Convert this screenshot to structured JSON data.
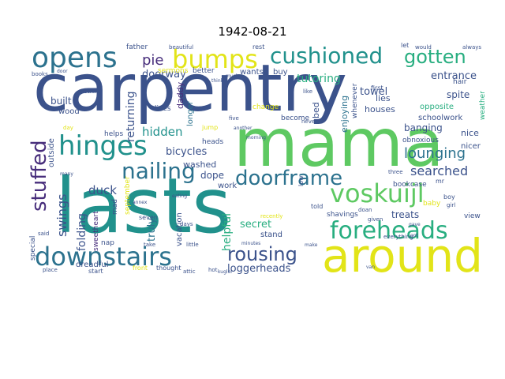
{
  "title": "1942-08-21",
  "palette": {
    "navy": "#3b528b",
    "dark": "#472d7b",
    "teal": "#21918c",
    "blue": "#2c728e",
    "green": "#5ec962",
    "yellow": "#e2e418",
    "lime": "#addc30",
    "sea": "#28ae80",
    "grey": "#414487"
  },
  "words": [
    "carpentry",
    "lasts",
    "mama",
    "around",
    "downstairs",
    "voskuijl",
    "foreheads",
    "opens",
    "bumps",
    "cushioned",
    "gotten",
    "hinges",
    "stuffed",
    "nailing",
    "doorframe",
    "rousing",
    "lounging",
    "searched",
    "swings",
    "hidden",
    "duck",
    "pie",
    "bicycles",
    "washed",
    "loggerheads",
    "dope",
    "secret",
    "treats",
    "banging",
    "entrance",
    "doorway",
    "returning",
    "tutoring",
    "towel",
    "built",
    "truly",
    "helpful",
    "folding",
    "work",
    "stand",
    "bookcase",
    "schoolwork",
    "opposite",
    "obnoxious",
    "houses",
    "lies",
    "spite",
    "nice",
    "nicer",
    "wood",
    "buy",
    "wants",
    "lives",
    "sermons",
    "better",
    "father",
    "daddy",
    "longer",
    "heads",
    "become",
    "change",
    "enjoying",
    "bed",
    "whenever",
    "hair",
    "first",
    "beautiful",
    "rest",
    "let",
    "would",
    "always",
    "books",
    "door",
    "nothing",
    "think",
    "much",
    "outside",
    "hiding",
    "many",
    "sweetheart",
    "september",
    "mad",
    "nap",
    "vacation",
    "dreadful",
    "special",
    "said",
    "place",
    "start",
    "front",
    "thought",
    "attic",
    "hot",
    "seven",
    "annex",
    "take",
    "little",
    "days",
    "minutes",
    "kugler",
    "low",
    "told",
    "shavings",
    "doan",
    "given",
    "baby",
    "view",
    "boy",
    "girl",
    "three",
    "everything",
    "like",
    "never",
    "five",
    "another",
    "morning",
    "jump",
    "helps",
    "eating",
    "make",
    "mr",
    "recently",
    "weather",
    "van",
    "day",
    "gave",
    "got"
  ]
}
